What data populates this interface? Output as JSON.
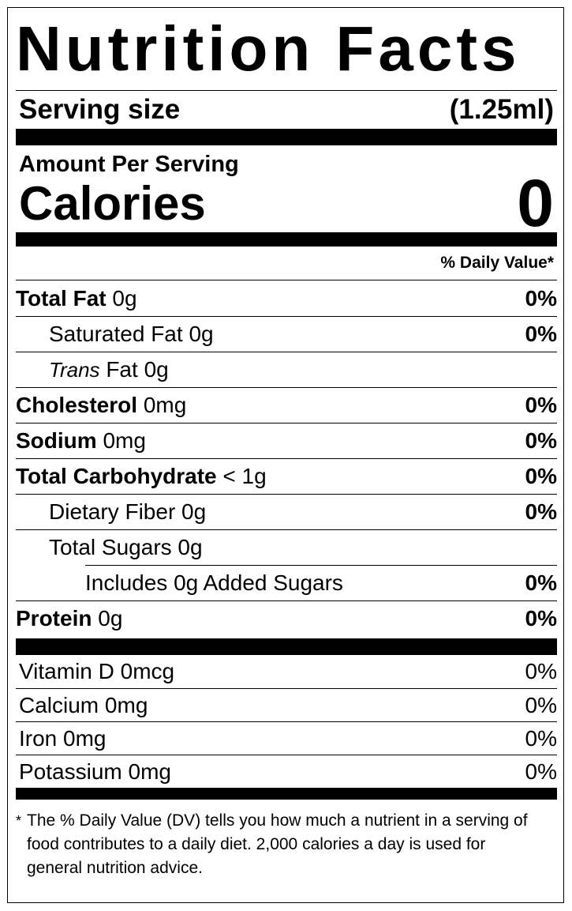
{
  "title": "Nutrition Facts",
  "serving": {
    "label": "Serving size",
    "value": "(1.25ml)"
  },
  "amount_per_serving": "Amount Per Serving",
  "calories": {
    "label": "Calories",
    "value": "0"
  },
  "daily_value_header": "% Daily Value*",
  "nutrients": [
    {
      "name": "Total Fat",
      "amount": "0g",
      "dv": "0%",
      "level": 0
    },
    {
      "name": "Saturated Fat",
      "amount": "0g",
      "dv": "0%",
      "level": 1
    },
    {
      "name_italic": "Trans",
      "name": "Fat",
      "amount": "0g",
      "level": 1
    },
    {
      "name": "Cholesterol",
      "amount": "0mg",
      "dv": "0%",
      "level": 0
    },
    {
      "name": "Sodium",
      "amount": "0mg",
      "dv": "0%",
      "level": 0
    },
    {
      "name": "Total Carbohydrate",
      "amount": "< 1g",
      "dv": "0%",
      "level": 0
    },
    {
      "name": "Dietary Fiber",
      "amount": "0g",
      "dv": "0%",
      "level": 1
    },
    {
      "name": "Total Sugars",
      "amount": "0g",
      "level": 1
    },
    {
      "name": "Includes 0g Added Sugars",
      "dv": "0%",
      "level": 2
    },
    {
      "name": "Protein",
      "amount": "0g",
      "dv": "0%",
      "level": 0
    }
  ],
  "vitamins": [
    {
      "name": "Vitamin D",
      "amount": "0mcg",
      "dv": "0%"
    },
    {
      "name": "Calcium",
      "amount": "0mg",
      "dv": "0%"
    },
    {
      "name": "Iron",
      "amount": "0mg",
      "dv": "0%"
    },
    {
      "name": "Potassium",
      "amount": "0mg",
      "dv": "0%"
    }
  ],
  "footnote": {
    "marker": "*",
    "text": "The % Daily Value (DV) tells you how much a nutrient in a serving of food contributes to a daily diet. 2,000 calories a day is used for general nutrition advice."
  }
}
